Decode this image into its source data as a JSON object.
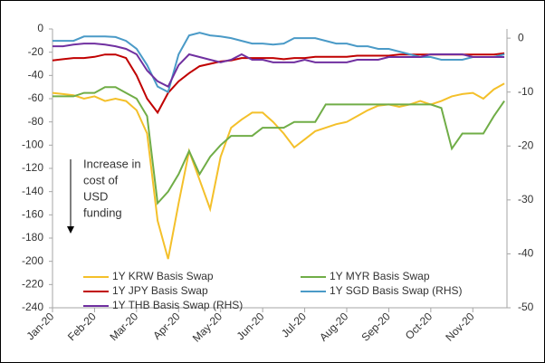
{
  "chart_data": {
    "type": "line",
    "categories": [
      "Jan-20",
      null,
      null,
      null,
      "Feb-20",
      null,
      null,
      null,
      "Mar-20",
      null,
      null,
      null,
      "Apr-20",
      null,
      null,
      null,
      "May-20",
      null,
      null,
      null,
      "Jun-20",
      null,
      null,
      null,
      "Jul-20",
      null,
      null,
      null,
      "Aug-20",
      null,
      null,
      null,
      "Sep-20",
      null,
      null,
      null,
      "Oct-20",
      null,
      null,
      null,
      "Nov-20",
      null,
      null,
      null
    ],
    "series": [
      {
        "name": "1Y KRW Basis Swap",
        "color": "#f4c02a",
        "axis": "y",
        "values": [
          -55,
          -56,
          -57,
          -60,
          -58,
          -62,
          -60,
          -62,
          -70,
          -90,
          -165,
          -198,
          -150,
          -105,
          -130,
          -155,
          -110,
          -85,
          -78,
          -72,
          -72,
          -80,
          -90,
          -102,
          -95,
          -88,
          -85,
          -82,
          -80,
          -75,
          -70,
          -66,
          -65,
          -67,
          -65,
          -62,
          -65,
          -62,
          -58,
          -56,
          -55,
          -60,
          -52,
          -47
        ]
      },
      {
        "name": "1Y MYR Basis Swap",
        "color": "#70ad47",
        "axis": "y",
        "values": [
          -58,
          -58,
          -58,
          -55,
          -55,
          -50,
          -50,
          -55,
          -60,
          -75,
          -150,
          -140,
          -125,
          -105,
          -125,
          -110,
          -100,
          -92,
          -92,
          -92,
          -85,
          -85,
          -85,
          -80,
          -80,
          -80,
          -65,
          -65,
          -65,
          -65,
          -65,
          -65,
          -65,
          -65,
          -65,
          -65,
          -65,
          -68,
          -103,
          -90,
          -90,
          -90,
          -75,
          -62
        ]
      },
      {
        "name": "1Y JPY Basis Swap",
        "color": "#c00000",
        "axis": "y",
        "values": [
          -27,
          -26,
          -25,
          -25,
          -24,
          -22,
          -22,
          -25,
          -40,
          -60,
          -72,
          -55,
          -45,
          -38,
          -32,
          -30,
          -28,
          -27,
          -25,
          -25,
          -25,
          -25,
          -26,
          -25,
          -25,
          -24,
          -24,
          -24,
          -24,
          -23,
          -23,
          -23,
          -23,
          -22,
          -22,
          -22,
          -22,
          -22,
          -22,
          -22,
          -22,
          -22,
          -22,
          -21
        ]
      },
      {
        "name": "1Y SGD Basis Swap (RHS)",
        "color": "#4a9ac7",
        "axis": "y2",
        "values": [
          -0.5,
          -0.5,
          -0.5,
          0.3,
          0.3,
          0.3,
          0.2,
          -0.5,
          -2,
          -5,
          -9,
          -10,
          -3,
          0.5,
          1,
          0.5,
          0.3,
          0,
          -0.5,
          -1,
          -1,
          -1.2,
          -1,
          0,
          0,
          0,
          -0.5,
          -1,
          -1,
          -1.5,
          -1.5,
          -2,
          -2,
          -2.5,
          -3,
          -3.5,
          -3.5,
          -4,
          -4,
          -4,
          -3.5,
          -3.5,
          -3.5,
          -3
        ]
      },
      {
        "name": "1Y THB Basis Swap (RHS)",
        "color": "#7030a0",
        "axis": "y2",
        "values": [
          -1.5,
          -1.5,
          -1.2,
          -1,
          -1,
          -1.2,
          -1.5,
          -2,
          -3,
          -6,
          -8,
          -9,
          -5,
          -3,
          -3.5,
          -4,
          -4.5,
          -4,
          -3,
          -4,
          -4,
          -4.5,
          -4.5,
          -4.5,
          -4,
          -4.5,
          -4.5,
          -4.5,
          -4.5,
          -4,
          -4,
          -4,
          -3.5,
          -3.5,
          -3.5,
          -3.5,
          -3,
          -3,
          -3,
          -3,
          -3.5,
          -3.5,
          -3.5,
          -3.5
        ]
      }
    ],
    "ylim": [
      -240,
      0
    ],
    "yticks": [
      -240,
      -220,
      -200,
      -180,
      -160,
      -140,
      -120,
      -100,
      -80,
      -60,
      -40,
      -20,
      0
    ],
    "y2lim": [
      -50,
      1.7
    ],
    "y2ticks": [
      -50,
      -40,
      -30,
      -20,
      -10,
      0
    ],
    "annotation": [
      "Increase in",
      "cost of",
      "USD",
      "funding"
    ],
    "legend": "lower left",
    "grid": false
  }
}
